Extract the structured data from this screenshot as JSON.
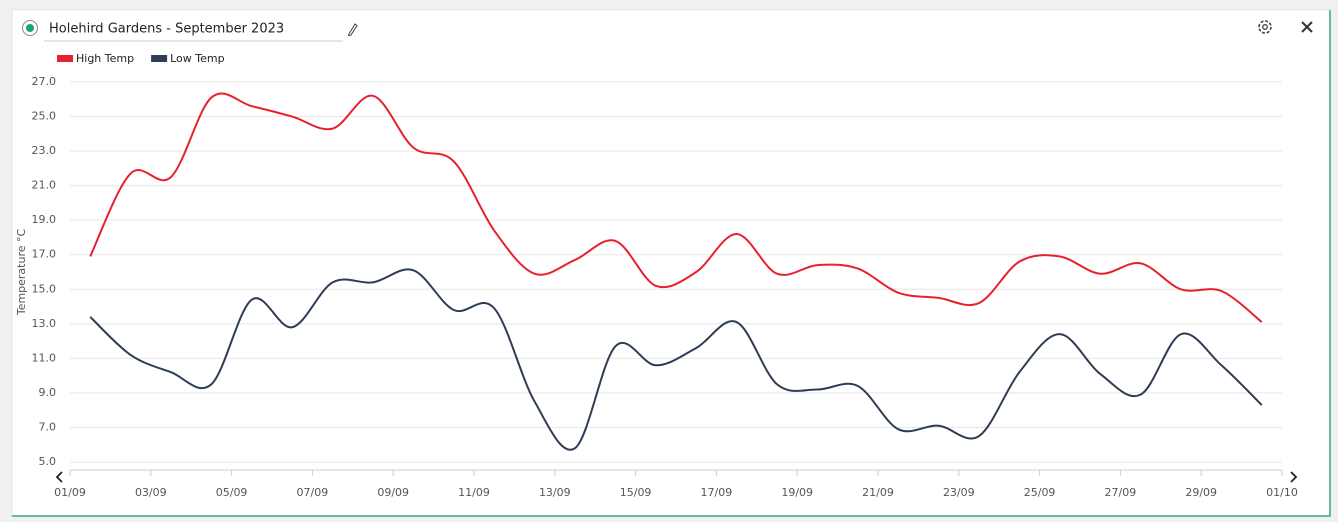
{
  "chart_data": {
    "type": "line",
    "title": "Holehird Gardens - September 2023",
    "y_label": "Temperature °C",
    "x": [
      "01/09",
      "02/09",
      "03/09",
      "04/09",
      "05/09",
      "06/09",
      "07/09",
      "08/09",
      "09/09",
      "10/09",
      "11/09",
      "12/09",
      "13/09",
      "14/09",
      "15/09",
      "16/09",
      "17/09",
      "18/09",
      "19/09",
      "20/09",
      "21/09",
      "22/09",
      "23/09",
      "24/09",
      "25/09",
      "26/09",
      "27/09",
      "28/09",
      "29/09",
      "30/09"
    ],
    "series": [
      {
        "name": "High Temp",
        "color": "#e8202e",
        "values": [
          16.9,
          21.7,
          21.5,
          26.1,
          25.6,
          25.0,
          24.3,
          26.2,
          23.2,
          22.4,
          18.4,
          15.9,
          16.7,
          17.8,
          15.2,
          16.0,
          18.2,
          15.9,
          16.4,
          16.2,
          14.8,
          14.5,
          14.2,
          16.6,
          16.9,
          15.9,
          16.5,
          15.0,
          14.9,
          13.1
        ]
      },
      {
        "name": "Low Temp",
        "color": "#2e3d55",
        "values": [
          13.4,
          11.2,
          10.2,
          9.5,
          14.4,
          12.8,
          15.4,
          15.4,
          16.1,
          13.8,
          13.9,
          8.5,
          5.8,
          11.7,
          10.6,
          11.6,
          13.1,
          9.5,
          9.2,
          9.4,
          6.9,
          7.1,
          6.5,
          10.2,
          12.4,
          10.1,
          8.9,
          12.4,
          10.6,
          8.3
        ]
      }
    ],
    "xticks": [
      "01/09",
      "03/09",
      "05/09",
      "07/09",
      "09/09",
      "11/09",
      "13/09",
      "15/09",
      "17/09",
      "19/09",
      "21/09",
      "23/09",
      "25/09",
      "27/09",
      "29/09",
      "01/10"
    ],
    "ylim": [
      5,
      27
    ],
    "yticks": [
      {
        "value": 5,
        "label": "5.0"
      },
      {
        "value": 7,
        "label": "7.0"
      },
      {
        "value": 9,
        "label": "9.0"
      },
      {
        "value": 11,
        "label": "11.0"
      },
      {
        "value": 13,
        "label": "13.0"
      },
      {
        "value": 15,
        "label": "15.0"
      },
      {
        "value": 17,
        "label": "17.0"
      },
      {
        "value": 19,
        "label": "19.0"
      },
      {
        "value": 21,
        "label": "21.0"
      },
      {
        "value": 23,
        "label": "23.0"
      },
      {
        "value": 25,
        "label": "25.0"
      },
      {
        "value": 27,
        "label": "27.0"
      }
    ],
    "grid": true,
    "legend": "top-left"
  }
}
